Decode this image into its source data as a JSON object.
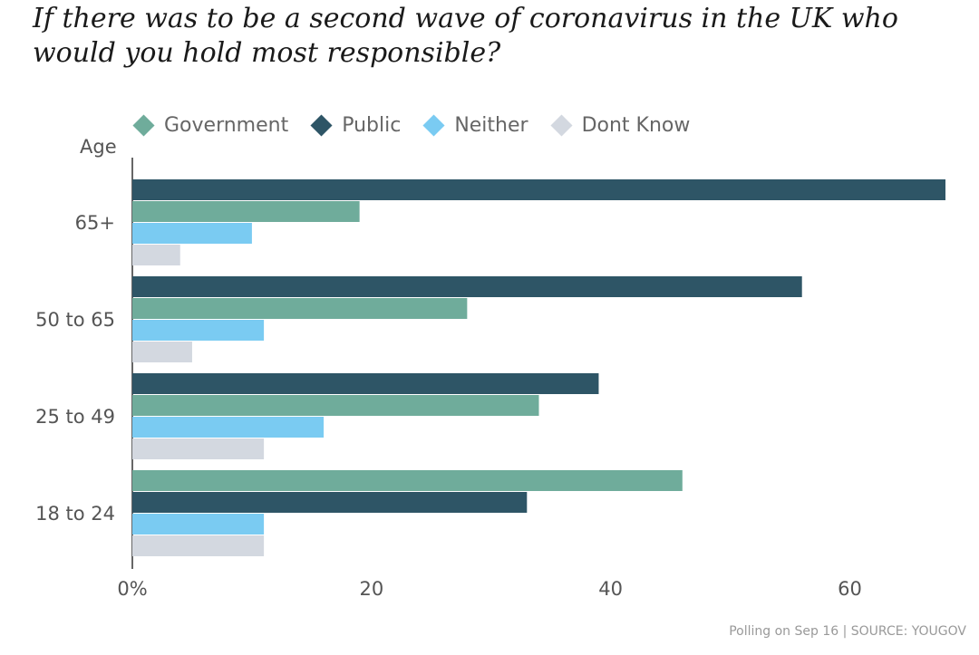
{
  "chart_data": {
    "type": "bar",
    "orientation": "horizontal",
    "title": "If there was to be a second wave of coronavirus in the UK who would you hold most responsible?",
    "ylabel": "Age",
    "xlabel": "",
    "xlim": [
      0,
      68
    ],
    "xticks": [
      0,
      20,
      40,
      60
    ],
    "xtick_labels": [
      "0%",
      "20",
      "40",
      "60"
    ],
    "categories": [
      "65+",
      "50 to 65",
      "25 to 49",
      "18 to 24"
    ],
    "series": [
      {
        "name": "Government",
        "color": "#6fac9b",
        "values": [
          19,
          28,
          34,
          46
        ]
      },
      {
        "name": "Public",
        "color": "#2e5566",
        "values": [
          68,
          56,
          39,
          33
        ]
      },
      {
        "name": "Neither",
        "color": "#7acbf2",
        "values": [
          10,
          11,
          16,
          11
        ]
      },
      {
        "name": "Dont Know",
        "color": "#d3d8e0",
        "values": [
          4,
          5,
          11,
          11
        ]
      }
    ],
    "bar_order": [
      [
        "Public",
        "Government",
        "Neither",
        "Dont Know"
      ],
      [
        "Public",
        "Government",
        "Neither",
        "Dont Know"
      ],
      [
        "Public",
        "Government",
        "Neither",
        "Dont Know"
      ],
      [
        "Government",
        "Public",
        "Neither",
        "Dont Know"
      ]
    ],
    "legend": [
      "Government",
      "Public",
      "Neither",
      "Dont Know"
    ],
    "legend_position": "top"
  },
  "footer": "Polling on Sep 16 | SOURCE: YOUGOV"
}
